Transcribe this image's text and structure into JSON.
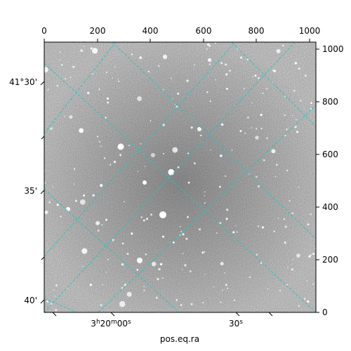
{
  "figure": {
    "xlabel": "pos.eq.ra",
    "pixel_axis_top": {
      "ticks": [
        "0",
        "200",
        "400",
        "600",
        "800",
        "1000"
      ],
      "range": [
        0,
        1024
      ]
    },
    "pixel_axis_right": {
      "ticks": [
        "0",
        "200",
        "400",
        "600",
        "800",
        "1000"
      ],
      "range": [
        0,
        1024
      ]
    },
    "dec_axis_left": {
      "ticks": [
        "41°30'",
        "35'",
        "40'"
      ]
    },
    "ra_axis_bottom": {
      "ticks": [
        "3h20m00s",
        "30s"
      ]
    },
    "grid_color": "#2fbfbf",
    "image_style": "grayscale star field"
  }
}
